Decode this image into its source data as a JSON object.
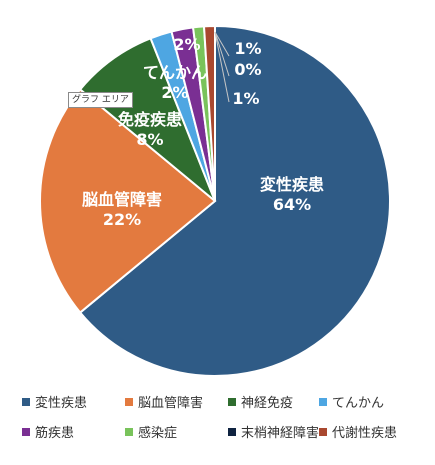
{
  "tooltip": {
    "text": "グラフ エリア"
  },
  "chart_data": {
    "type": "pie",
    "title": "",
    "legend_position": "bottom",
    "categories": [
      "変性疾患",
      "脳血管障害",
      "神経免疫",
      "てんかん",
      "筋疾患",
      "感染症",
      "末梢神経障害",
      "代謝性疾患"
    ],
    "values": [
      64,
      22,
      8,
      2,
      2,
      1,
      0,
      1
    ],
    "labels": [
      "変性疾患\n64%",
      "脳血管障害\n22%",
      "免疫疾患\n8%",
      "てんかん\n2%",
      "2%",
      "1%",
      "0%",
      "1%"
    ],
    "colors": [
      "#2f5b86",
      "#e37a3f",
      "#2f6d2f",
      "#4ea6e2",
      "#7a2f93",
      "#79c35b",
      "#0f2340",
      "#a9482f"
    ],
    "legend": [
      "変性疾患",
      "脳血管障害",
      "神経免疫",
      "てんかん",
      "筋疾患",
      "感染症",
      "末梢神経障害",
      "代謝性疾患"
    ]
  }
}
